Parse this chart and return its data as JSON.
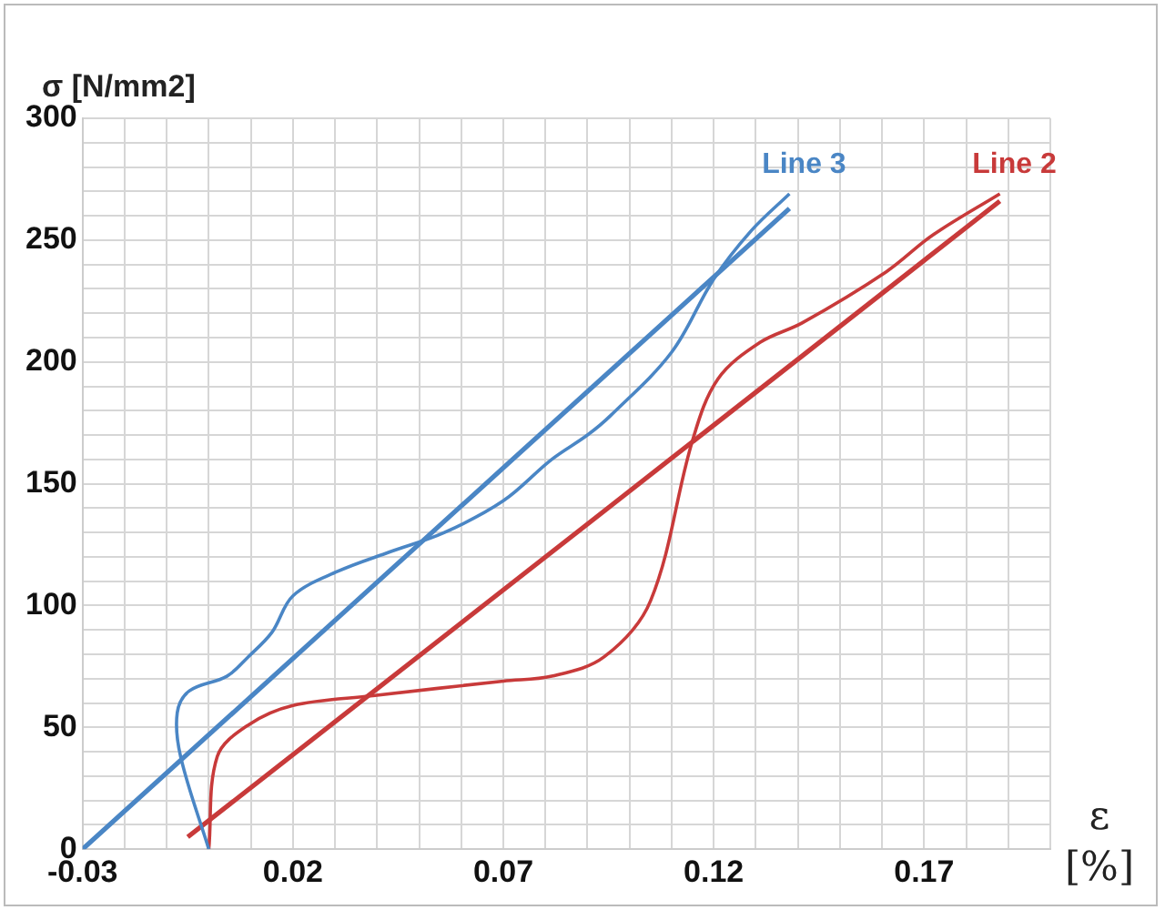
{
  "chart_data": {
    "type": "line",
    "ylabel": "σ [N/mm2]",
    "xlabel": "ε\n[%]",
    "marker": "none",
    "grid": true,
    "legend": false,
    "xlim": [
      -0.03,
      0.2
    ],
    "ylim": [
      0,
      300
    ],
    "xticks": [
      -0.03,
      {
        "value": -0.02,
        "label": null
      },
      {
        "value": -0.01,
        "label": null
      },
      {
        "value": 0,
        "label": null
      },
      {
        "value": 0.01,
        "label": null
      },
      0.02,
      {
        "value": 0.03,
        "label": null
      },
      {
        "value": 0.04,
        "label": null
      },
      {
        "value": 0.05,
        "label": null
      },
      {
        "value": 0.06,
        "label": null
      },
      0.07,
      {
        "value": 0.08,
        "label": null
      },
      {
        "value": 0.09,
        "label": null
      },
      {
        "value": 0.1,
        "label": null
      },
      {
        "value": 0.11,
        "label": null
      },
      0.12,
      {
        "value": 0.13,
        "label": null
      },
      {
        "value": 0.14,
        "label": null
      },
      {
        "value": 0.15,
        "label": null
      },
      {
        "value": 0.16,
        "label": null
      },
      0.17,
      {
        "value": 0.18,
        "label": null
      },
      {
        "value": 0.19,
        "label": null
      },
      {
        "value": 0.2,
        "label": null
      }
    ],
    "yticks": [
      0,
      {
        "value": 10,
        "label": null
      },
      {
        "value": 20,
        "label": null
      },
      {
        "value": 30,
        "label": null
      },
      {
        "value": 40,
        "label": null
      },
      50,
      {
        "value": 60,
        "label": null
      },
      {
        "value": 70,
        "label": null
      },
      {
        "value": 80,
        "label": null
      },
      {
        "value": 90,
        "label": null
      },
      100,
      {
        "value": 110,
        "label": null
      },
      {
        "value": 120,
        "label": null
      },
      {
        "value": 130,
        "label": null
      },
      {
        "value": 140,
        "label": null
      },
      150,
      {
        "value": 160,
        "label": null
      },
      {
        "value": 170,
        "label": null
      },
      {
        "value": 180,
        "label": null
      },
      {
        "value": 190,
        "label": null
      },
      200,
      {
        "value": 210,
        "label": null
      },
      {
        "value": 220,
        "label": null
      },
      {
        "value": 230,
        "label": null
      },
      {
        "value": 240,
        "label": null
      },
      250,
      {
        "value": 260,
        "label": null
      },
      {
        "value": 270,
        "label": null
      },
      {
        "value": 280,
        "label": null
      },
      {
        "value": 290,
        "label": null
      },
      300
    ],
    "series": [
      {
        "color": "#4a86c5",
        "x": [
          -0.03,
          0.138
        ],
        "values": [
          0,
          263
        ]
      },
      {
        "name": "Line 3",
        "color": "#4a86c5",
        "x": [
          0,
          -0.0067,
          -0.0075,
          -0.0046,
          0.0043,
          0.0094,
          0.015,
          0.02,
          0.0306,
          0.043,
          0.056,
          0.07,
          0.0815,
          0.09,
          0.0955,
          0.11,
          0.12,
          0.129,
          0.138
        ],
        "values": [
          0,
          38,
          56,
          65,
          71,
          79,
          89,
          104,
          114,
          122,
          130,
          143,
          160,
          170,
          178,
          204,
          234,
          254,
          269
        ]
      },
      {
        "color": "#c83a3a",
        "x": [
          -0.005,
          0.188
        ],
        "values": [
          5,
          266
        ]
      },
      {
        "name": "Line 2",
        "color": "#c83a3a",
        "x": [
          0,
          0.002,
          0.0094,
          0.02,
          0.039,
          0.07,
          0.0815,
          0.094,
          0.105,
          0.115,
          0.121,
          0.131,
          0.141,
          0.161,
          0.172,
          0.188
        ],
        "values": [
          0,
          38,
          51,
          59,
          63,
          69,
          71,
          79,
          102,
          168,
          193,
          208,
          216,
          237,
          252,
          269
        ]
      }
    ]
  }
}
